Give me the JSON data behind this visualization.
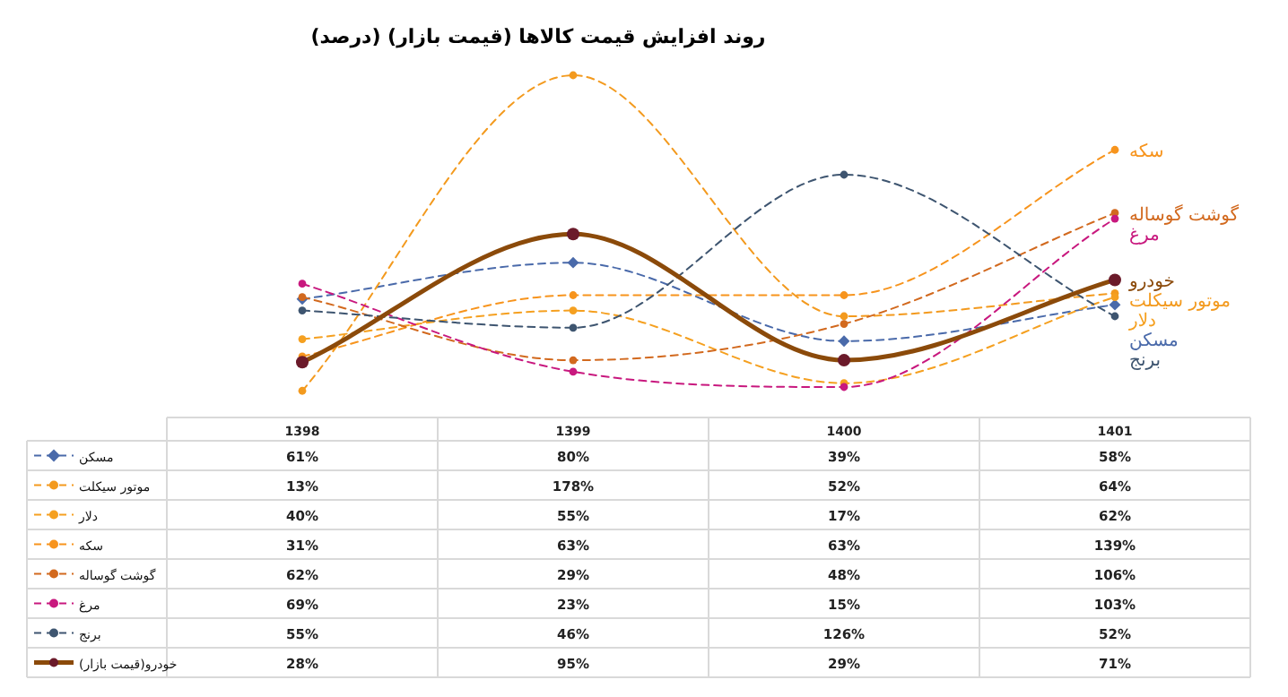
{
  "chart_data": {
    "type": "line",
    "title": "روند افزایش قیمت کالاها (قیمت بازار) (درصد)",
    "categories": [
      "1398",
      "1399",
      "1400",
      "1401"
    ],
    "legend": "bottom",
    "series": [
      {
        "name": "مسکن",
        "color": "#4a6aaa",
        "line_style": "dashed",
        "marker": "diamond",
        "values": [
          61,
          80,
          39,
          58
        ],
        "value_labels": [
          "61%",
          "80%",
          "39%",
          "58%"
        ]
      },
      {
        "name": "موتور سیکلت",
        "color": "#f39a1e",
        "line_style": "dashed",
        "marker": "circle",
        "values": [
          13,
          178,
          52,
          64
        ],
        "value_labels": [
          "13%",
          "178%",
          "52%",
          "64%"
        ]
      },
      {
        "name": "دلار",
        "color": "#f5a020",
        "line_style": "dashed",
        "marker": "circle",
        "values": [
          40,
          55,
          17,
          62
        ],
        "value_labels": [
          "40%",
          "55%",
          "17%",
          "62%"
        ]
      },
      {
        "name": "سکه",
        "color": "#f7941d",
        "line_style": "dashed",
        "marker": "circle",
        "values": [
          31,
          63,
          63,
          139
        ],
        "value_labels": [
          "31%",
          "63%",
          "63%",
          "139%"
        ]
      },
      {
        "name": "گوشت گوساله",
        "color": "#d2691e",
        "line_style": "dashed",
        "marker": "circle",
        "values": [
          62,
          29,
          48,
          106
        ],
        "value_labels": [
          "62%",
          "29%",
          "48%",
          "106%"
        ]
      },
      {
        "name": "مرغ",
        "color": "#c8187e",
        "line_style": "dashed",
        "marker": "circle",
        "values": [
          69,
          23,
          15,
          103
        ],
        "value_labels": [
          "69%",
          "23%",
          "15%",
          "103%"
        ]
      },
      {
        "name": "برنج",
        "color": "#3e5570",
        "line_style": "dashed",
        "marker": "circle",
        "values": [
          55,
          46,
          126,
          52
        ],
        "value_labels": [
          "55%",
          "46%",
          "126%",
          "52%"
        ]
      },
      {
        "name": "خودرو(قیمت بازار)",
        "color": "#8b4a0a",
        "line_style": "solid",
        "marker": "circle",
        "values": [
          28,
          95,
          29,
          71
        ],
        "value_labels": [
          "28%",
          "95%",
          "29%",
          "71%"
        ]
      }
    ],
    "annotations": [
      {
        "text": "سکه",
        "x": "1401",
        "y": 139
      },
      {
        "text": "گوشت گوساله",
        "x": "1401",
        "y": 106
      },
      {
        "text": "مرغ",
        "x": "1401",
        "y": 103
      },
      {
        "text": "خودرو",
        "x": "1401",
        "y": 71
      },
      {
        "text": "موتور سیکلت",
        "x": "1401",
        "y": 64
      },
      {
        "text": "دلار",
        "x": "1401",
        "y": 62
      },
      {
        "text": "مسکن",
        "x": "1401",
        "y": 58
      },
      {
        "text": "برنج",
        "x": "1401",
        "y": 52
      }
    ]
  }
}
